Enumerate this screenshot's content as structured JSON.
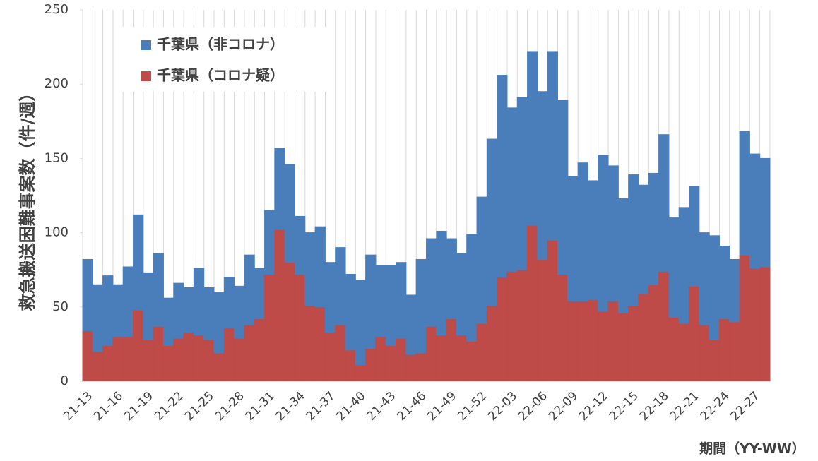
{
  "chart_data": {
    "type": "stacked_bar",
    "y_label": "救急搬送困難事案数（件/週）",
    "x_label": "期間（YY-WW）",
    "categories": [
      "21-13",
      null,
      null,
      "21-16",
      null,
      null,
      "21-19",
      null,
      null,
      "21-22",
      null,
      null,
      "21-25",
      null,
      null,
      "21-28",
      null,
      null,
      "21-31",
      null,
      null,
      "21-34",
      null,
      null,
      "21-37",
      null,
      null,
      "21-40",
      null,
      null,
      "21-43",
      null,
      null,
      "21-46",
      null,
      null,
      "21-49",
      null,
      null,
      "21-52",
      null,
      null,
      "22-03",
      null,
      null,
      "22-06",
      null,
      null,
      "22-09",
      null,
      null,
      "22-12",
      null,
      null,
      "22-15",
      null,
      null,
      "22-18",
      null,
      null,
      "22-21",
      null,
      null,
      "22-24",
      null,
      null,
      "22-27",
      null
    ],
    "series": [
      {
        "name": "千葉県（非コロナ）",
        "color": "#4a7ebb",
        "values": [
          48,
          45,
          47,
          35,
          47,
          64,
          45,
          49,
          32,
          37,
          30,
          45,
          35,
          41,
          34,
          35,
          47,
          34,
          43,
          55,
          66,
          39,
          49,
          54,
          47,
          52,
          51,
          57,
          63,
          48,
          54,
          51,
          40,
          63,
          59,
          70,
          54,
          55,
          72,
          85,
          112,
          136,
          110,
          116,
          117,
          113,
          127,
          117,
          84,
          93,
          80,
          105,
          91,
          77,
          88,
          73,
          75,
          92,
          67,
          78,
          67,
          62,
          70,
          49,
          42,
          83,
          77,
          73
        ]
      },
      {
        "name": "千葉県（コロナ疑）",
        "color": "#be4b48",
        "values": [
          34,
          20,
          24,
          30,
          30,
          48,
          28,
          37,
          24,
          29,
          33,
          31,
          28,
          19,
          36,
          29,
          38,
          42,
          72,
          102,
          80,
          72,
          51,
          50,
          33,
          38,
          21,
          11,
          22,
          30,
          24,
          29,
          18,
          19,
          37,
          31,
          42,
          31,
          27,
          39,
          51,
          70,
          74,
          75,
          105,
          82,
          95,
          72,
          54,
          54,
          55,
          47,
          54,
          46,
          51,
          59,
          65,
          74,
          43,
          39,
          64,
          38,
          28,
          42,
          40,
          85,
          76,
          77
        ]
      }
    ],
    "ylim": [
      0,
      250
    ],
    "yticks": [
      0,
      50,
      100,
      150,
      200,
      250
    ],
    "grid": "vertical",
    "legend": "upper left"
  }
}
